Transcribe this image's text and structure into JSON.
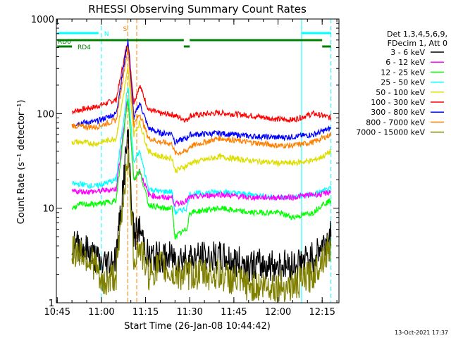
{
  "chart_data": {
    "type": "line",
    "title": "RHESSI Observing Summary Count Rates",
    "xlabel": "Start Time (26-Jan-08 10:44:42)",
    "ylabel": "Count Rate (s⁻¹ detector⁻¹)",
    "y_scale": "log",
    "ylim": [
      1,
      1000
    ],
    "xlim_minutes": [
      10.745,
      12.33
    ],
    "x_ticks": [
      "10:45",
      "11:00",
      "11:15",
      "11:30",
      "11:45",
      "12:00",
      "12:15"
    ],
    "y_ticks": [
      "1",
      "10",
      "100",
      "1000"
    ],
    "timestamp": "13-Oct-2021 17:37",
    "legend": {
      "placement": "right",
      "header": [
        "Det 1,3,4,5,6,9,",
        "FDecim 1, Att 0"
      ],
      "entries": [
        {
          "label": "3 - 6 keV",
          "color": "#000000"
        },
        {
          "label": "6 - 12 keV",
          "color": "#ff00ff"
        },
        {
          "label": "12 - 25 keV",
          "color": "#00ff00"
        },
        {
          "label": "25 - 50 keV",
          "color": "#00ffff"
        },
        {
          "label": "50 - 100 keV",
          "color": "#dddd00"
        },
        {
          "label": "100 - 300 keV",
          "color": "#ff0000"
        },
        {
          "label": "300 - 800 keV",
          "color": "#0000ff"
        },
        {
          "label": "800 - 7000 keV",
          "color": "#ff8000"
        },
        {
          "label": "7000 - 15000 keV",
          "color": "#808000"
        }
      ]
    },
    "annotations": {
      "N": "N",
      "S": "S",
      "RD0": "RD0",
      "RD4": "RD4"
    },
    "series": [
      {
        "name": "100 - 300 keV",
        "color": "#ff0000",
        "points": [
          [
            "10:50",
            105
          ],
          [
            "10:53",
            110
          ],
          [
            "10:58",
            118
          ],
          [
            "11:05",
            140
          ],
          [
            "11:09",
            600
          ],
          [
            "11:11",
            130
          ],
          [
            "11:13",
            200
          ],
          [
            "11:16",
            110
          ],
          [
            "11:20",
            100
          ],
          [
            "11:24",
            98
          ],
          [
            "11:29",
            85
          ],
          [
            "11:30",
            95
          ],
          [
            "11:40",
            102
          ],
          [
            "11:50",
            96
          ],
          [
            "12:00",
            87
          ],
          [
            "12:05",
            86
          ],
          [
            "12:12",
            100
          ],
          [
            "12:15",
            95
          ],
          [
            "12:18",
            90
          ]
        ]
      },
      {
        "name": "300 - 800 keV",
        "color": "#0000ff",
        "points": [
          [
            "10:50",
            77
          ],
          [
            "10:53",
            80
          ],
          [
            "10:58",
            82
          ],
          [
            "11:05",
            100
          ],
          [
            "11:09",
            600
          ],
          [
            "11:11",
            90
          ],
          [
            "11:13",
            130
          ],
          [
            "11:16",
            70
          ],
          [
            "11:20",
            62
          ],
          [
            "11:24",
            62
          ],
          [
            "11:25",
            50
          ],
          [
            "11:29",
            55
          ],
          [
            "11:30",
            60
          ],
          [
            "11:40",
            62
          ],
          [
            "11:50",
            58
          ],
          [
            "12:00",
            56
          ],
          [
            "12:05",
            57
          ],
          [
            "12:12",
            60
          ],
          [
            "12:15",
            65
          ],
          [
            "12:18",
            70
          ]
        ]
      },
      {
        "name": "800 - 7000 keV",
        "color": "#ff8000",
        "points": [
          [
            "10:50",
            75
          ],
          [
            "10:53",
            73
          ],
          [
            "10:58",
            72
          ],
          [
            "11:05",
            85
          ],
          [
            "11:09",
            500
          ],
          [
            "11:11",
            75
          ],
          [
            "11:13",
            100
          ],
          [
            "11:16",
            55
          ],
          [
            "11:20",
            50
          ],
          [
            "11:24",
            48
          ],
          [
            "11:25",
            38
          ],
          [
            "11:29",
            40
          ],
          [
            "11:30",
            45
          ],
          [
            "11:40",
            55
          ],
          [
            "11:50",
            50
          ],
          [
            "12:00",
            46
          ],
          [
            "12:05",
            46
          ],
          [
            "12:12",
            50
          ],
          [
            "12:15",
            55
          ],
          [
            "12:18",
            60
          ]
        ]
      },
      {
        "name": "50 - 100 keV",
        "color": "#dddd00",
        "points": [
          [
            "10:50",
            50
          ],
          [
            "10:53",
            50
          ],
          [
            "10:58",
            48
          ],
          [
            "11:05",
            55
          ],
          [
            "11:09",
            300
          ],
          [
            "11:11",
            60
          ],
          [
            "11:13",
            80
          ],
          [
            "11:16",
            40
          ],
          [
            "11:20",
            35
          ],
          [
            "11:24",
            34
          ],
          [
            "11:25",
            25
          ],
          [
            "11:29",
            28
          ],
          [
            "11:30",
            30
          ],
          [
            "11:40",
            35
          ],
          [
            "11:50",
            32
          ],
          [
            "12:00",
            30
          ],
          [
            "12:05",
            30
          ],
          [
            "12:12",
            32
          ],
          [
            "12:15",
            35
          ],
          [
            "12:18",
            40
          ]
        ]
      },
      {
        "name": "25 - 50 keV",
        "color": "#00ffff",
        "points": [
          [
            "10:50",
            18
          ],
          [
            "10:53",
            18
          ],
          [
            "10:58",
            17
          ],
          [
            "11:05",
            20
          ],
          [
            "11:09",
            200
          ],
          [
            "11:11",
            30
          ],
          [
            "11:13",
            40
          ],
          [
            "11:16",
            16
          ],
          [
            "11:20",
            15
          ],
          [
            "11:24",
            15
          ],
          [
            "11:25",
            9
          ],
          [
            "11:29",
            10
          ],
          [
            "11:30",
            14
          ],
          [
            "11:40",
            15
          ],
          [
            "11:50",
            14
          ],
          [
            "12:00",
            13
          ],
          [
            "12:05",
            13
          ],
          [
            "12:12",
            14
          ],
          [
            "12:15",
            15
          ],
          [
            "12:18",
            16
          ]
        ]
      },
      {
        "name": "6 - 12 keV",
        "color": "#ff00ff",
        "points": [
          [
            "10:50",
            15
          ],
          [
            "10:53",
            15
          ],
          [
            "10:58",
            15
          ],
          [
            "11:05",
            16
          ],
          [
            "11:09",
            150
          ],
          [
            "11:11",
            20
          ],
          [
            "11:13",
            25
          ],
          [
            "11:16",
            14
          ],
          [
            "11:20",
            13
          ],
          [
            "11:24",
            13
          ],
          [
            "11:25",
            11
          ],
          [
            "11:29",
            12
          ],
          [
            "11:30",
            13
          ],
          [
            "11:40",
            14
          ],
          [
            "11:50",
            13
          ],
          [
            "12:00",
            13
          ],
          [
            "12:05",
            13
          ],
          [
            "12:12",
            14
          ],
          [
            "12:15",
            14
          ],
          [
            "12:18",
            15
          ]
        ]
      },
      {
        "name": "12 - 25 keV",
        "color": "#00ff00",
        "points": [
          [
            "10:50",
            10
          ],
          [
            "10:53",
            11
          ],
          [
            "10:58",
            11
          ],
          [
            "11:05",
            12
          ],
          [
            "11:09",
            150
          ],
          [
            "11:11",
            20
          ],
          [
            "11:13",
            25
          ],
          [
            "11:16",
            11
          ],
          [
            "11:20",
            10
          ],
          [
            "11:24",
            10
          ],
          [
            "11:25",
            5
          ],
          [
            "11:29",
            6
          ],
          [
            "11:30",
            9
          ],
          [
            "11:40",
            10
          ],
          [
            "11:50",
            9
          ],
          [
            "12:00",
            9
          ],
          [
            "12:05",
            8
          ],
          [
            "12:12",
            9
          ],
          [
            "12:15",
            11
          ],
          [
            "12:18",
            12
          ]
        ]
      },
      {
        "name": "3 - 6 keV",
        "color": "#000000",
        "points": [
          [
            "10:50",
            4
          ],
          [
            "10:53",
            4
          ],
          [
            "10:58",
            3
          ],
          [
            "11:00",
            2.5
          ],
          [
            "11:05",
            3
          ],
          [
            "11:09",
            60
          ],
          [
            "11:11",
            5
          ],
          [
            "11:13",
            6
          ],
          [
            "11:16",
            3
          ],
          [
            "11:20",
            3
          ],
          [
            "11:24",
            3
          ],
          [
            "11:30",
            3
          ],
          [
            "11:40",
            3
          ],
          [
            "11:50",
            2.5
          ],
          [
            "12:00",
            2.5
          ],
          [
            "12:05",
            2.5
          ],
          [
            "12:12",
            3
          ],
          [
            "12:15",
            4
          ],
          [
            "12:18",
            5
          ]
        ]
      },
      {
        "name": "7000 - 15000 keV",
        "color": "#808000",
        "points": [
          [
            "10:50",
            3.5
          ],
          [
            "10:53",
            3.5
          ],
          [
            "10:58",
            2.5
          ],
          [
            "11:00",
            1.5
          ],
          [
            "11:05",
            2
          ],
          [
            "11:09",
            40
          ],
          [
            "11:11",
            3
          ],
          [
            "11:13",
            4
          ],
          [
            "11:16",
            2
          ],
          [
            "11:20",
            2.5
          ],
          [
            "11:24",
            2
          ],
          [
            "11:30",
            2
          ],
          [
            "11:40",
            2
          ],
          [
            "11:50",
            1.5
          ],
          [
            "12:00",
            1.5
          ],
          [
            "12:05",
            1.5
          ],
          [
            "12:12",
            2
          ],
          [
            "12:15",
            3
          ],
          [
            "12:18",
            4
          ]
        ]
      }
    ],
    "markers": {
      "cyan_vertical_lines": [
        "11:00",
        "12:08",
        "12:18"
      ],
      "orange_vertical_lines": [
        "11:09",
        "11:12"
      ],
      "flag_bars": [
        {
          "label": "RD0",
          "color": "#008000",
          "from": "10:45",
          "to": "11:28"
        },
        {
          "label": "RD0",
          "color": "#008000",
          "from": "11:30",
          "to": "12:15"
        },
        {
          "label": "RD4",
          "color": "#008000",
          "from": "10:45",
          "to": "10:50"
        },
        {
          "label": "RD4",
          "color": "#008000",
          "from": "11:28",
          "to": "11:30"
        },
        {
          "label": "RD4",
          "color": "#008000",
          "from": "12:15",
          "to": "12:18"
        },
        {
          "label": "N",
          "color": "#00ffff",
          "from": "10:45",
          "to": "10:59"
        },
        {
          "label": "N",
          "color": "#00ffff",
          "from": "12:08",
          "to": "12:18"
        }
      ]
    }
  }
}
